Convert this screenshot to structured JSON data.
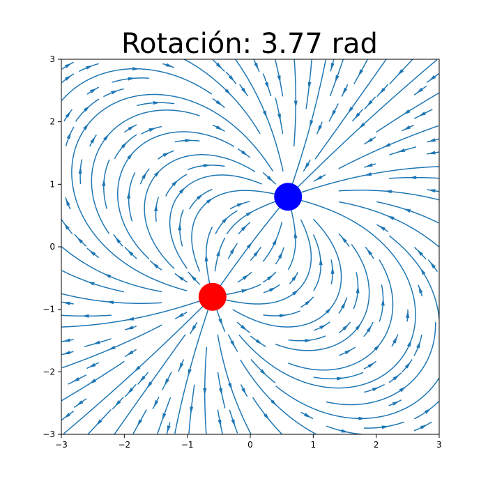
{
  "chart_data": {
    "type": "streamplot",
    "title": "Rotación: 3.77 rad",
    "xlabel": "",
    "ylabel": "",
    "xlim": [
      -3,
      3
    ],
    "ylim": [
      -3,
      3
    ],
    "x_ticks": [
      -3,
      -2,
      -1,
      0,
      1,
      2,
      3
    ],
    "y_ticks": [
      -3,
      -2,
      -1,
      0,
      1,
      2,
      3
    ],
    "grid": false,
    "stream_color": "#1f77b4",
    "charges": [
      {
        "color": "#ff0000",
        "x": -0.6,
        "y": -0.8,
        "sign": 1
      },
      {
        "color": "#0000ff",
        "x": 0.6,
        "y": 0.8,
        "sign": -1
      }
    ]
  }
}
